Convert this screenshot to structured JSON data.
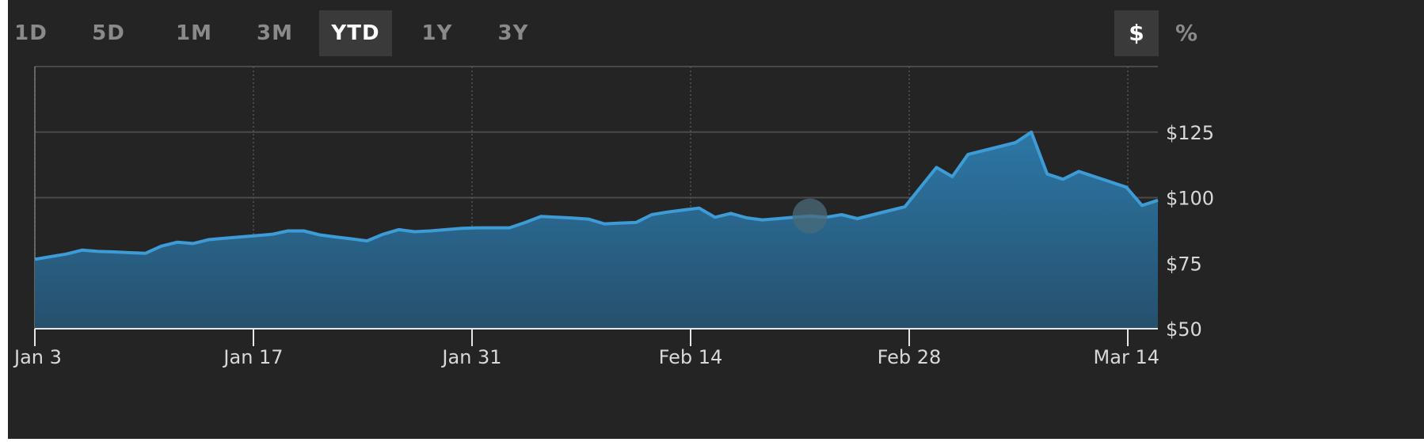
{
  "range_tabs": [
    {
      "label": "1D",
      "active": false
    },
    {
      "label": "5D",
      "active": false
    },
    {
      "label": "1M",
      "active": false
    },
    {
      "label": "3M",
      "active": false
    },
    {
      "label": "YTD",
      "active": true
    },
    {
      "label": "1Y",
      "active": false
    },
    {
      "label": "3Y",
      "active": false
    }
  ],
  "unit_toggle": {
    "dollar": "$",
    "percent": "%",
    "active": "dollar"
  },
  "colors": {
    "background": "#242424",
    "line": "#3d9bd6",
    "fill_top": "#2c77a6",
    "fill_bottom": "#26506d",
    "grid": "#4a4a4a",
    "hover_marker": "#4a6b7a"
  },
  "chart_data": {
    "type": "area",
    "title": "",
    "xlabel": "",
    "ylabel": "",
    "ylim": [
      50,
      150
    ],
    "yticks": [
      50,
      75,
      100,
      125
    ],
    "ytick_labels": [
      "$50",
      "$75",
      "$100",
      "$125"
    ],
    "xticks": [
      "Jan 3",
      "Jan 17",
      "Jan 31",
      "Feb 14",
      "Feb 28",
      "Mar 14"
    ],
    "grid": true,
    "hover_marker_index": 49,
    "series": [
      {
        "values": [
          76.5,
          77.5,
          78.5,
          80,
          79.5,
          79.3,
          79,
          78.8,
          81.5,
          83,
          82.5,
          84,
          84.5,
          85,
          85.5,
          86,
          87.3,
          87.3,
          85.8,
          85,
          84.3,
          83.5,
          86,
          87.8,
          87,
          87.3,
          87.8,
          88.3,
          88.5,
          88.5,
          88.5,
          90.5,
          92.8,
          92.5,
          92.2,
          91.8,
          90,
          90.3,
          90.5,
          93.5,
          94.5,
          95.3,
          96,
          92.5,
          94,
          92.3,
          91.5,
          92,
          92.5,
          93,
          92.5,
          93.5,
          92,
          93.5,
          95,
          96.5,
          104,
          111.5,
          108,
          116.5,
          118,
          119.5,
          121,
          125,
          109,
          107,
          110,
          108,
          106,
          104,
          97,
          99
        ]
      }
    ]
  }
}
